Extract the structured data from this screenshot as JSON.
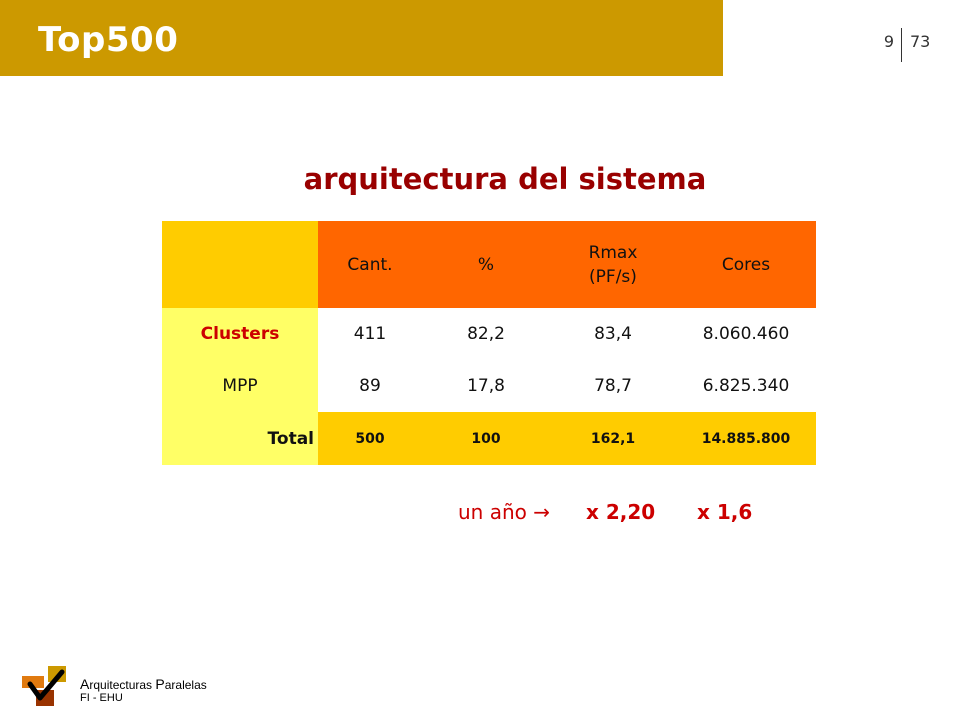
{
  "header": {
    "title": "Top500",
    "page_current": "9",
    "page_total": "73"
  },
  "slide": {
    "heading": "arquitectura del sistema"
  },
  "table": {
    "headers": [
      "",
      "Cant.",
      "%",
      "Rmax\n(PF/s)",
      "Cores"
    ],
    "rows": [
      {
        "label": "Clusters",
        "values": [
          "411",
          "82,2",
          "83,4",
          "8.060.460"
        ]
      },
      {
        "label": "MPP",
        "values": [
          "89",
          "17,8",
          "78,7",
          "6.825.340"
        ]
      },
      {
        "label": "Total",
        "values": [
          "500",
          "100",
          "162,1",
          "14.885.800"
        ]
      }
    ]
  },
  "note": {
    "label": "un año →",
    "value1": "x 2,20",
    "value2": "x 1,6"
  },
  "footer": {
    "line1_a_initial": "A",
    "line1_a_rest": "rquitecturas ",
    "line1_p_initial": "P",
    "line1_p_rest": "aralelas",
    "line2": "FI - EHU",
    "logo_icon": "checkmark-icon"
  },
  "colors": {
    "banner": "#cc9900",
    "heading": "#990000",
    "header_row": "#ff6600",
    "corner_and_total": "#ffcc00",
    "label_column": "#ffff66",
    "accent_red": "#cc0000"
  }
}
